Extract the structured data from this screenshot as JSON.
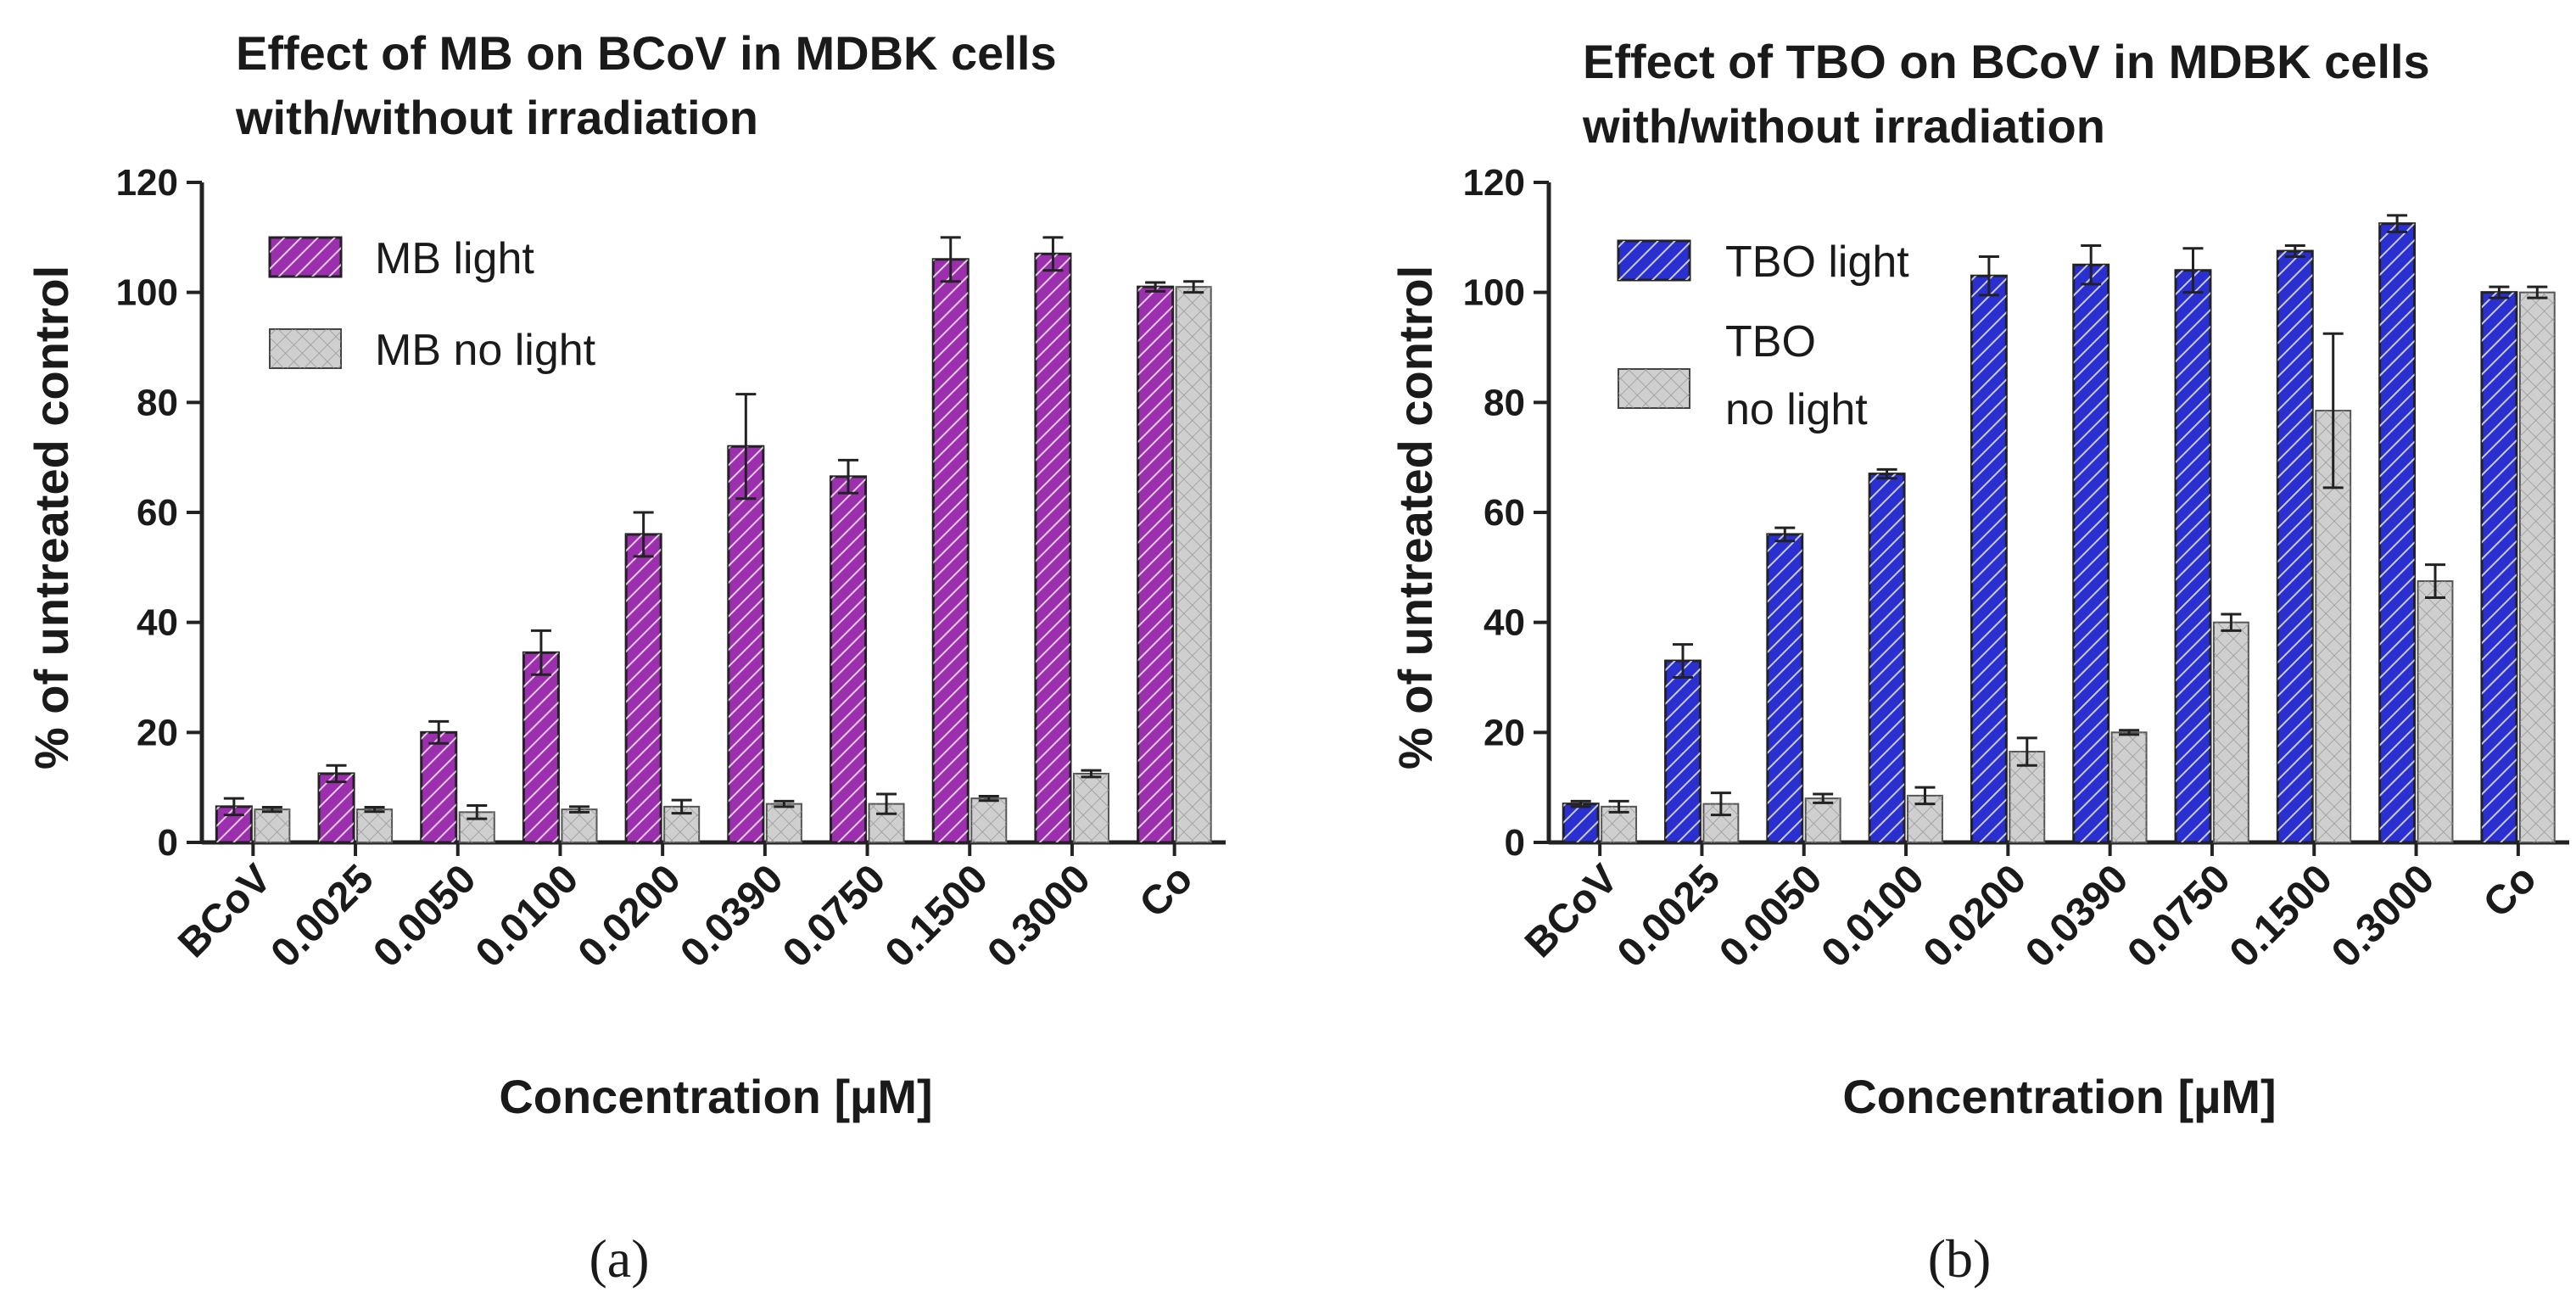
{
  "chart_data": [
    {
      "type": "bar",
      "panel_label": "(a)",
      "title": "Effect of MB on BCoV in MDBK cells with/without irradiation",
      "title_lines": [
        "Effect of MB on BCoV in MDBK cells",
        "with/without irradiation"
      ],
      "xlabel": "Concentration [µM]",
      "ylabel": "% of untreated control",
      "ylim": [
        0,
        120
      ],
      "yticks": [
        0,
        20,
        40,
        60,
        80,
        100,
        120
      ],
      "categories": [
        "BCoV",
        "0.0025",
        "0.0050",
        "0.0100",
        "0.0200",
        "0.0390",
        "0.0750",
        "0.1500",
        "0.3000",
        "Co"
      ],
      "legend_position": "top-left",
      "series": [
        {
          "name": "MB light",
          "name_lines": [
            "MB light"
          ],
          "color": "#9b2fae",
          "pattern": "hatched",
          "values": [
            6.5,
            12.5,
            20,
            34.5,
            56,
            72,
            66.5,
            106,
            107,
            101
          ],
          "errors": [
            1.5,
            1.5,
            2,
            4,
            4,
            9.5,
            3,
            4,
            3,
            0.8
          ]
        },
        {
          "name": "MB no light",
          "name_lines": [
            "MB no light"
          ],
          "color": "#cfcfcf",
          "pattern": "crosshatched",
          "values": [
            6,
            6,
            5.5,
            6,
            6.5,
            7,
            7,
            8,
            12.5,
            101
          ],
          "errors": [
            0.4,
            0.4,
            1.2,
            0.5,
            1.2,
            0.5,
            1.8,
            0.4,
            0.6,
            1
          ]
        }
      ]
    },
    {
      "type": "bar",
      "panel_label": "(b)",
      "title": "Effect of TBO on BCoV in MDBK cells with/without irradiation",
      "title_lines": [
        "Effect of TBO on BCoV in MDBK cells",
        "with/without irradiation"
      ],
      "xlabel": "Concentration [µM]",
      "ylabel": "% of untreated control",
      "ylim": [
        0,
        120
      ],
      "yticks": [
        0,
        20,
        40,
        60,
        80,
        100,
        120
      ],
      "categories": [
        "BCoV",
        "0.0025",
        "0.0050",
        "0.0100",
        "0.0200",
        "0.0390",
        "0.0750",
        "0.1500",
        "0.3000",
        "Co"
      ],
      "legend_position": "top-left",
      "series": [
        {
          "name": "TBO light",
          "name_lines": [
            "TBO light"
          ],
          "color": "#2a2fcf",
          "pattern": "hatched",
          "values": [
            7,
            33,
            56,
            67,
            103,
            105,
            104,
            107.5,
            112.5,
            100
          ],
          "errors": [
            0.5,
            3,
            1.2,
            0.8,
            3.5,
            3.5,
            4,
            1,
            1.5,
            1
          ]
        },
        {
          "name": "TBO no light",
          "name_lines": [
            "TBO",
            "no light"
          ],
          "color": "#cfcfcf",
          "pattern": "crosshatched",
          "values": [
            6.5,
            7,
            8,
            8.5,
            16.5,
            20,
            40,
            78.5,
            47.5,
            100
          ],
          "errors": [
            1,
            2,
            0.8,
            1.5,
            2.5,
            0.4,
            1.5,
            14,
            3,
            1
          ]
        }
      ]
    }
  ]
}
